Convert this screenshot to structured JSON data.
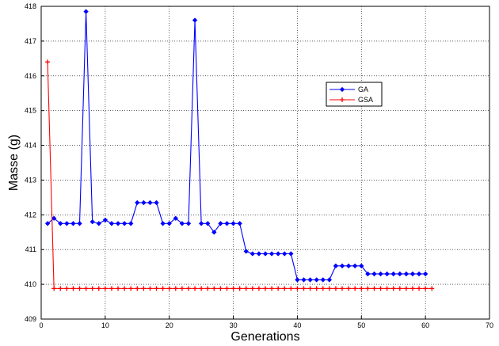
{
  "chart_data": {
    "type": "line",
    "title": "",
    "xlabel": "Generations",
    "ylabel": "Masse  (g)",
    "xlim": [
      0,
      70
    ],
    "ylim": [
      409,
      418
    ],
    "xticks": [
      0,
      10,
      20,
      30,
      40,
      50,
      60,
      70
    ],
    "yticks": [
      409,
      410,
      411,
      412,
      413,
      414,
      415,
      416,
      417,
      418
    ],
    "grid": true,
    "legend_position": "upper-right-center",
    "series": [
      {
        "name": "GA",
        "color": "#0000ff",
        "marker": "diamond",
        "x": [
          1,
          2,
          3,
          4,
          5,
          6,
          7,
          8,
          9,
          10,
          11,
          12,
          13,
          14,
          15,
          16,
          17,
          18,
          19,
          20,
          21,
          22,
          23,
          24,
          25,
          26,
          27,
          28,
          29,
          30,
          31,
          32,
          33,
          34,
          35,
          36,
          37,
          38,
          39,
          40,
          41,
          42,
          43,
          44,
          45,
          46,
          47,
          48,
          49,
          50,
          51,
          52,
          53,
          54,
          55,
          56,
          57,
          58,
          59,
          60
        ],
        "y": [
          411.75,
          411.9,
          411.75,
          411.75,
          411.75,
          411.75,
          417.85,
          411.8,
          411.75,
          411.85,
          411.75,
          411.75,
          411.75,
          411.75,
          412.35,
          412.35,
          412.35,
          412.35,
          411.75,
          411.75,
          411.9,
          411.75,
          411.75,
          417.6,
          411.75,
          411.75,
          411.5,
          411.75,
          411.75,
          411.75,
          411.75,
          410.95,
          410.88,
          410.88,
          410.88,
          410.88,
          410.88,
          410.88,
          410.88,
          410.13,
          410.13,
          410.13,
          410.13,
          410.13,
          410.13,
          410.53,
          410.53,
          410.53,
          410.53,
          410.53,
          410.3,
          410.3,
          410.3,
          410.3,
          410.3,
          410.3,
          410.3,
          410.3,
          410.3,
          410.3
        ]
      },
      {
        "name": "GSA",
        "color": "#ff0000",
        "marker": "plus",
        "x": [
          1,
          2,
          3,
          4,
          5,
          6,
          7,
          8,
          9,
          10,
          11,
          12,
          13,
          14,
          15,
          16,
          17,
          18,
          19,
          20,
          21,
          22,
          23,
          24,
          25,
          26,
          27,
          28,
          29,
          30,
          31,
          32,
          33,
          34,
          35,
          36,
          37,
          38,
          39,
          40,
          41,
          42,
          43,
          44,
          45,
          46,
          47,
          48,
          49,
          50,
          51,
          52,
          53,
          54,
          55,
          56,
          57,
          58,
          59,
          60,
          61
        ],
        "y": [
          416.4,
          409.88,
          409.88,
          409.88,
          409.88,
          409.88,
          409.88,
          409.88,
          409.88,
          409.88,
          409.88,
          409.88,
          409.88,
          409.88,
          409.88,
          409.88,
          409.88,
          409.88,
          409.88,
          409.88,
          409.88,
          409.88,
          409.88,
          409.88,
          409.88,
          409.88,
          409.88,
          409.88,
          409.88,
          409.88,
          409.88,
          409.88,
          409.88,
          409.88,
          409.88,
          409.88,
          409.88,
          409.88,
          409.88,
          409.88,
          409.88,
          409.88,
          409.88,
          409.88,
          409.88,
          409.88,
          409.88,
          409.88,
          409.88,
          409.88,
          409.88,
          409.88,
          409.88,
          409.88,
          409.88,
          409.88,
          409.88,
          409.88,
          409.88,
          409.88,
          409.88
        ]
      }
    ]
  }
}
